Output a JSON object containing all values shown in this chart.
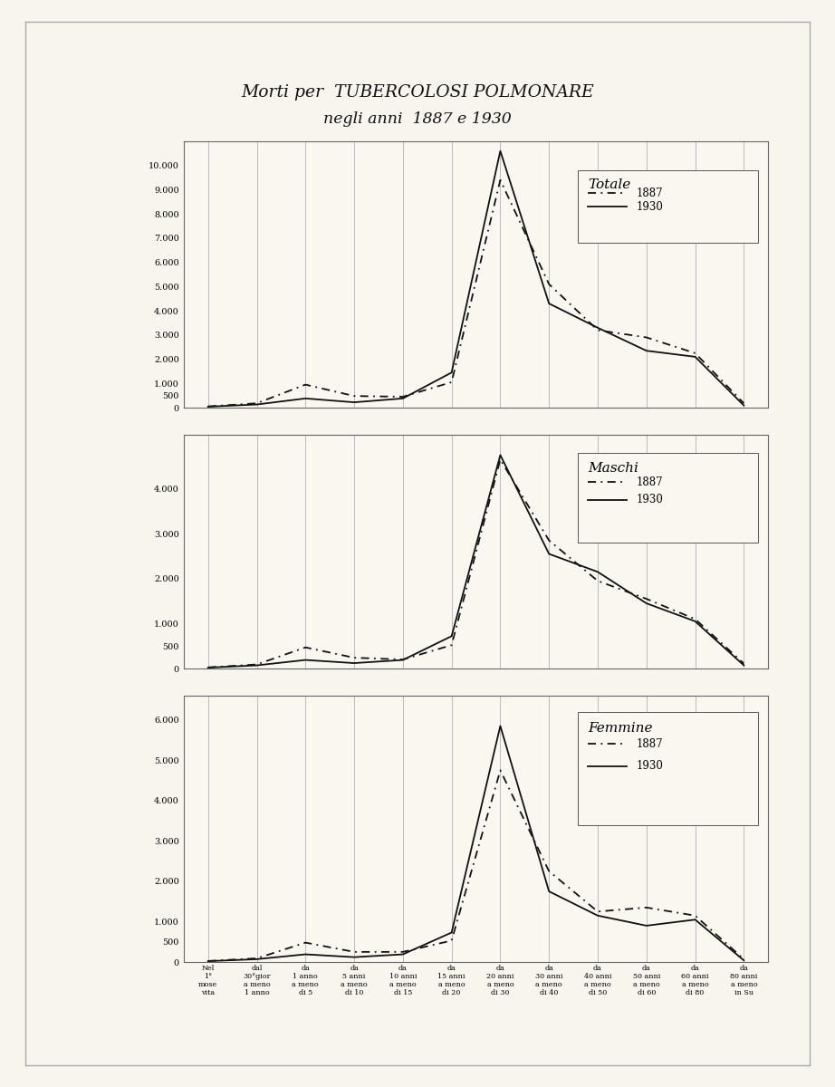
{
  "title_line1": "Morti per  TUBERCOLOSI POLMONARE",
  "title_line2": "negli anni  1887 e 1930",
  "x_labels": [
    "Nel\n1°\nmose\nvita",
    "dal\n30°gior\na meno\n1 anno",
    "da\n1 anno\na meno\ndi 5",
    "da\n5 anni\na meno\ndi 10",
    "da\n10 anni\na meno\ndi 15",
    "da\n15 anni\na meno\ndi 20",
    "da\n20 anni\na meno\ndi 30",
    "da\n30 anni\na meno\ndi 40",
    "da\n40 anni\na meno\ndi 50",
    "da\n50 anni\na meno\ndi 60",
    "da\n60 anni\na meno\ndi 80",
    "da\n80 anni\na meno\nin Su"
  ],
  "totale_1887": [
    50,
    180,
    950,
    480,
    450,
    1050,
    9400,
    5100,
    3200,
    2900,
    2250,
    180
  ],
  "totale_1930": [
    40,
    130,
    380,
    220,
    380,
    1450,
    10600,
    4300,
    3300,
    2350,
    2100,
    90
  ],
  "maschi_1887": [
    25,
    90,
    470,
    240,
    200,
    520,
    4650,
    2850,
    1950,
    1550,
    1100,
    110
  ],
  "maschi_1930": [
    20,
    70,
    190,
    120,
    190,
    720,
    4750,
    2550,
    2150,
    1450,
    1050,
    70
  ],
  "femmine_1887": [
    25,
    90,
    480,
    250,
    250,
    530,
    4750,
    2250,
    1250,
    1350,
    1150,
    70
  ],
  "femmine_1930": [
    20,
    70,
    190,
    120,
    190,
    730,
    5850,
    1750,
    1150,
    900,
    1050,
    40
  ],
  "page_bg": "#f8f5ee",
  "plot_bg": "#faf7f0",
  "line_color": "#111111",
  "grid_color": "#bbbbbb",
  "border_color": "#555555"
}
